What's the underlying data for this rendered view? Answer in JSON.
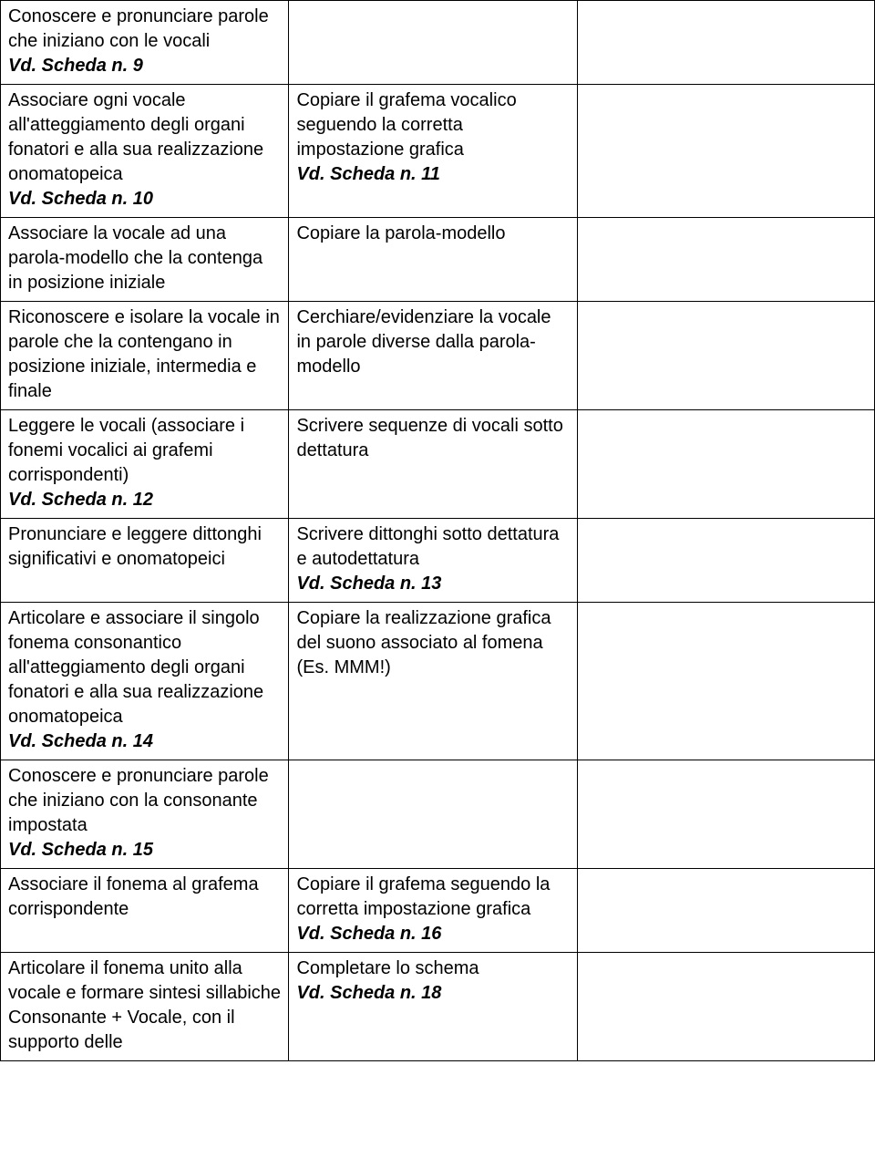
{
  "table": {
    "columns": 3,
    "rows": [
      {
        "col1_text": "Conoscere e pronunciare parole che iniziano con le vocali",
        "col1_ref": "Vd. Scheda n. 9",
        "col2_text": "",
        "col2_ref": "",
        "col3_text": ""
      },
      {
        "col1_text": "Associare ogni vocale all'atteggiamento degli organi fonatori e alla sua realizzazione onomatopeica",
        "col1_ref": "Vd. Scheda n. 10",
        "col2_text": "Copiare il grafema vocalico seguendo la corretta impostazione grafica",
        "col2_ref": "Vd. Scheda n. 11",
        "col3_text": ""
      },
      {
        "col1_text": "Associare la vocale ad una parola-modello che la contenga in posizione iniziale",
        "col1_ref": "",
        "col2_text": "Copiare la parola-modello",
        "col2_ref": "",
        "col3_text": ""
      },
      {
        "col1_text": "Riconoscere e isolare la vocale in parole che la contengano in posizione iniziale, intermedia e finale",
        "col1_ref": "",
        "col2_text": "Cerchiare/evidenziare la vocale in parole diverse dalla parola-modello",
        "col2_ref": "",
        "col3_text": ""
      },
      {
        "col1_text": "Leggere le vocali (associare i fonemi vocalici ai grafemi corrispondenti)",
        "col1_ref": "Vd. Scheda n. 12",
        "col2_text": "Scrivere sequenze di vocali sotto dettatura",
        "col2_ref": "",
        "col3_text": ""
      },
      {
        "col1_text": "Pronunciare e leggere dittonghi significativi e onomatopeici",
        "col1_ref": "",
        "col2_text": "Scrivere dittonghi sotto dettatura e autodettatura",
        "col2_ref": "Vd. Scheda n. 13",
        "col3_text": ""
      },
      {
        "col1_text": "Articolare e associare il singolo fonema consonantico all'atteggiamento degli organi fonatori e alla sua realizzazione onomatopeica",
        "col1_ref": "Vd. Scheda n. 14",
        "col2_text": "Copiare la realizzazione grafica del suono associato al fomena (Es. MMM!)",
        "col2_ref": "",
        "col3_text": ""
      },
      {
        "col1_text": "Conoscere e pronunciare parole che iniziano con la consonante impostata",
        "col1_ref": "Vd. Scheda n. 15",
        "col2_text": "",
        "col2_ref": "",
        "col3_text": ""
      },
      {
        "col1_text": "Associare il fonema al grafema corrispondente",
        "col1_ref": "",
        "col2_text": "Copiare il grafema  seguendo la corretta impostazione grafica",
        "col2_ref": "Vd. Scheda n. 16",
        "col3_text": ""
      },
      {
        "col1_text": "Articolare il fonema unito alla vocale e formare sintesi sillabiche Consonante + Vocale, con il supporto delle",
        "col1_ref": "",
        "col2_text": "Completare lo schema",
        "col2_ref": "Vd. Scheda n. 18",
        "col3_text": ""
      }
    ]
  }
}
